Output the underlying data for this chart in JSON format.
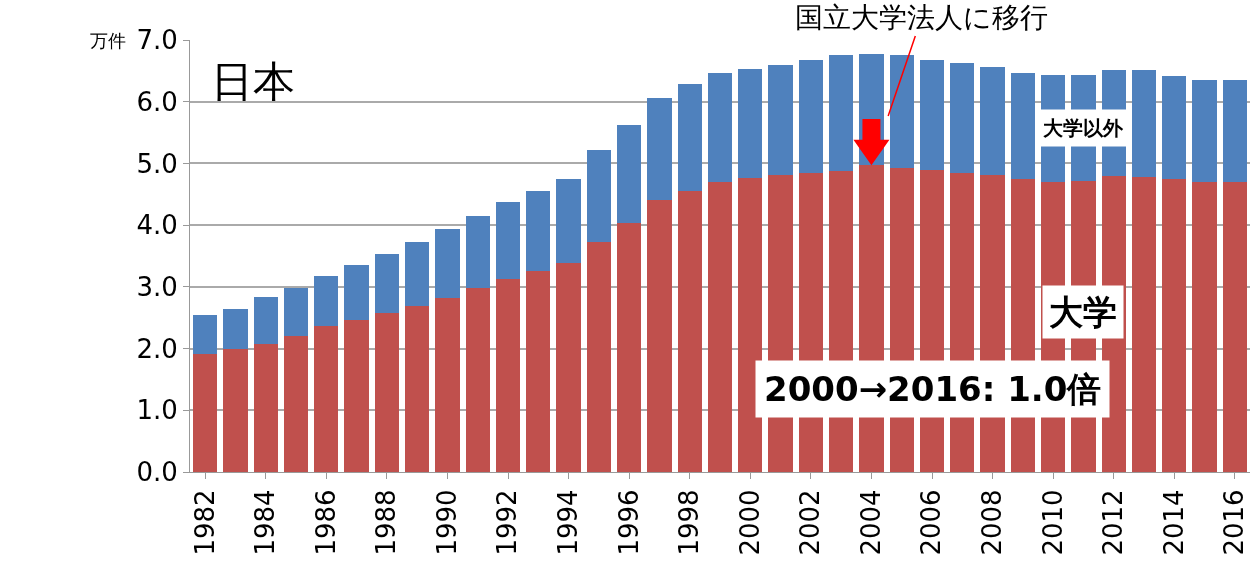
{
  "chart_data": {
    "type": "bar",
    "title": "日本",
    "ylabel": "万件",
    "categories": [
      "1982",
      null,
      "1984",
      null,
      "1986",
      null,
      "1988",
      null,
      "1990",
      null,
      "1992",
      null,
      "1994",
      null,
      "1996",
      null,
      "1998",
      null,
      "2000",
      null,
      "2002",
      null,
      "2004",
      null,
      "2006",
      null,
      "2008",
      null,
      "2010",
      null,
      "2012",
      null,
      "2014",
      null,
      "2016"
    ],
    "stacked": true,
    "series": [
      {
        "name": "大学",
        "color": "#c0504d",
        "values": [
          1.91,
          1.99,
          2.08,
          2.21,
          2.36,
          2.47,
          2.58,
          2.69,
          2.82,
          2.98,
          3.13,
          3.25,
          3.38,
          3.72,
          4.04,
          4.41,
          4.55,
          4.7,
          4.76,
          4.81,
          4.84,
          4.87,
          4.97,
          4.92,
          4.89,
          4.84,
          4.81,
          4.74,
          4.7,
          4.71,
          4.79,
          4.78,
          4.74,
          4.7,
          4.7
        ]
      },
      {
        "name": "大学以外",
        "color": "#4f81bd",
        "values": [
          0.64,
          0.65,
          0.76,
          0.77,
          0.81,
          0.88,
          0.95,
          1.03,
          1.11,
          1.17,
          1.24,
          1.3,
          1.36,
          1.49,
          1.58,
          1.65,
          1.73,
          1.76,
          1.77,
          1.79,
          1.84,
          1.88,
          1.81,
          1.83,
          1.79,
          1.79,
          1.76,
          1.72,
          1.73,
          1.72,
          1.72,
          1.73,
          1.67,
          1.65,
          1.65
        ]
      }
    ],
    "ylim": [
      0,
      7
    ],
    "yticks": [
      {
        "value": 0,
        "label": "0.0"
      },
      {
        "value": 1,
        "label": "1.0"
      },
      {
        "value": 2,
        "label": "2.0"
      },
      {
        "value": 3,
        "label": "3.0"
      },
      {
        "value": 4,
        "label": "4.0"
      },
      {
        "value": 5,
        "label": "5.0"
      },
      {
        "value": 6,
        "label": "6.0"
      },
      {
        "value": 7,
        "label": "7.0"
      }
    ],
    "grid": "y",
    "legend": false,
    "annotations": [
      {
        "text": "国立大学法人に移行",
        "x": "2004",
        "y": 4.97
      },
      "2000→2016: 1.0倍"
    ]
  }
}
